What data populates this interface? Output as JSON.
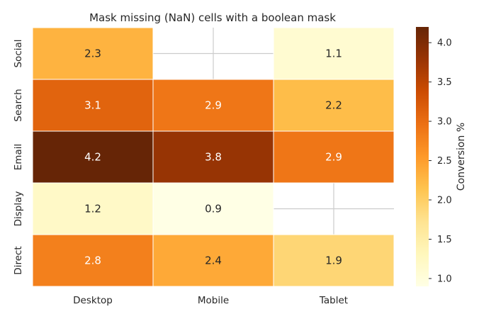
{
  "chart_data": {
    "type": "heatmap",
    "title": "Mask missing (NaN) cells with a boolean mask",
    "x_categories": [
      "Desktop",
      "Mobile",
      "Tablet"
    ],
    "y_categories": [
      "Social",
      "Search",
      "Email",
      "Display",
      "Direct"
    ],
    "values": [
      [
        2.3,
        null,
        1.1
      ],
      [
        3.1,
        2.9,
        2.2
      ],
      [
        4.2,
        3.8,
        2.9
      ],
      [
        1.2,
        0.9,
        null
      ],
      [
        2.8,
        2.4,
        1.9
      ]
    ],
    "value_labels": [
      [
        "2.3",
        "",
        "1.1"
      ],
      [
        "3.1",
        "2.9",
        "2.2"
      ],
      [
        "4.2",
        "3.8",
        "2.9"
      ],
      [
        "1.2",
        "0.9",
        ""
      ],
      [
        "2.8",
        "2.4",
        "1.9"
      ]
    ],
    "colormap": "YlOrBr",
    "vmin": 0.9,
    "vmax": 4.2,
    "masked_cells_shown_blank": true,
    "grid": true,
    "colorbar": {
      "label": "Conversion %",
      "ticks": [
        1.0,
        1.5,
        2.0,
        2.5,
        3.0,
        3.5,
        4.0
      ],
      "tick_labels": [
        "1.0",
        "1.5",
        "2.0",
        "2.5",
        "3.0",
        "3.5",
        "4.0"
      ]
    }
  }
}
